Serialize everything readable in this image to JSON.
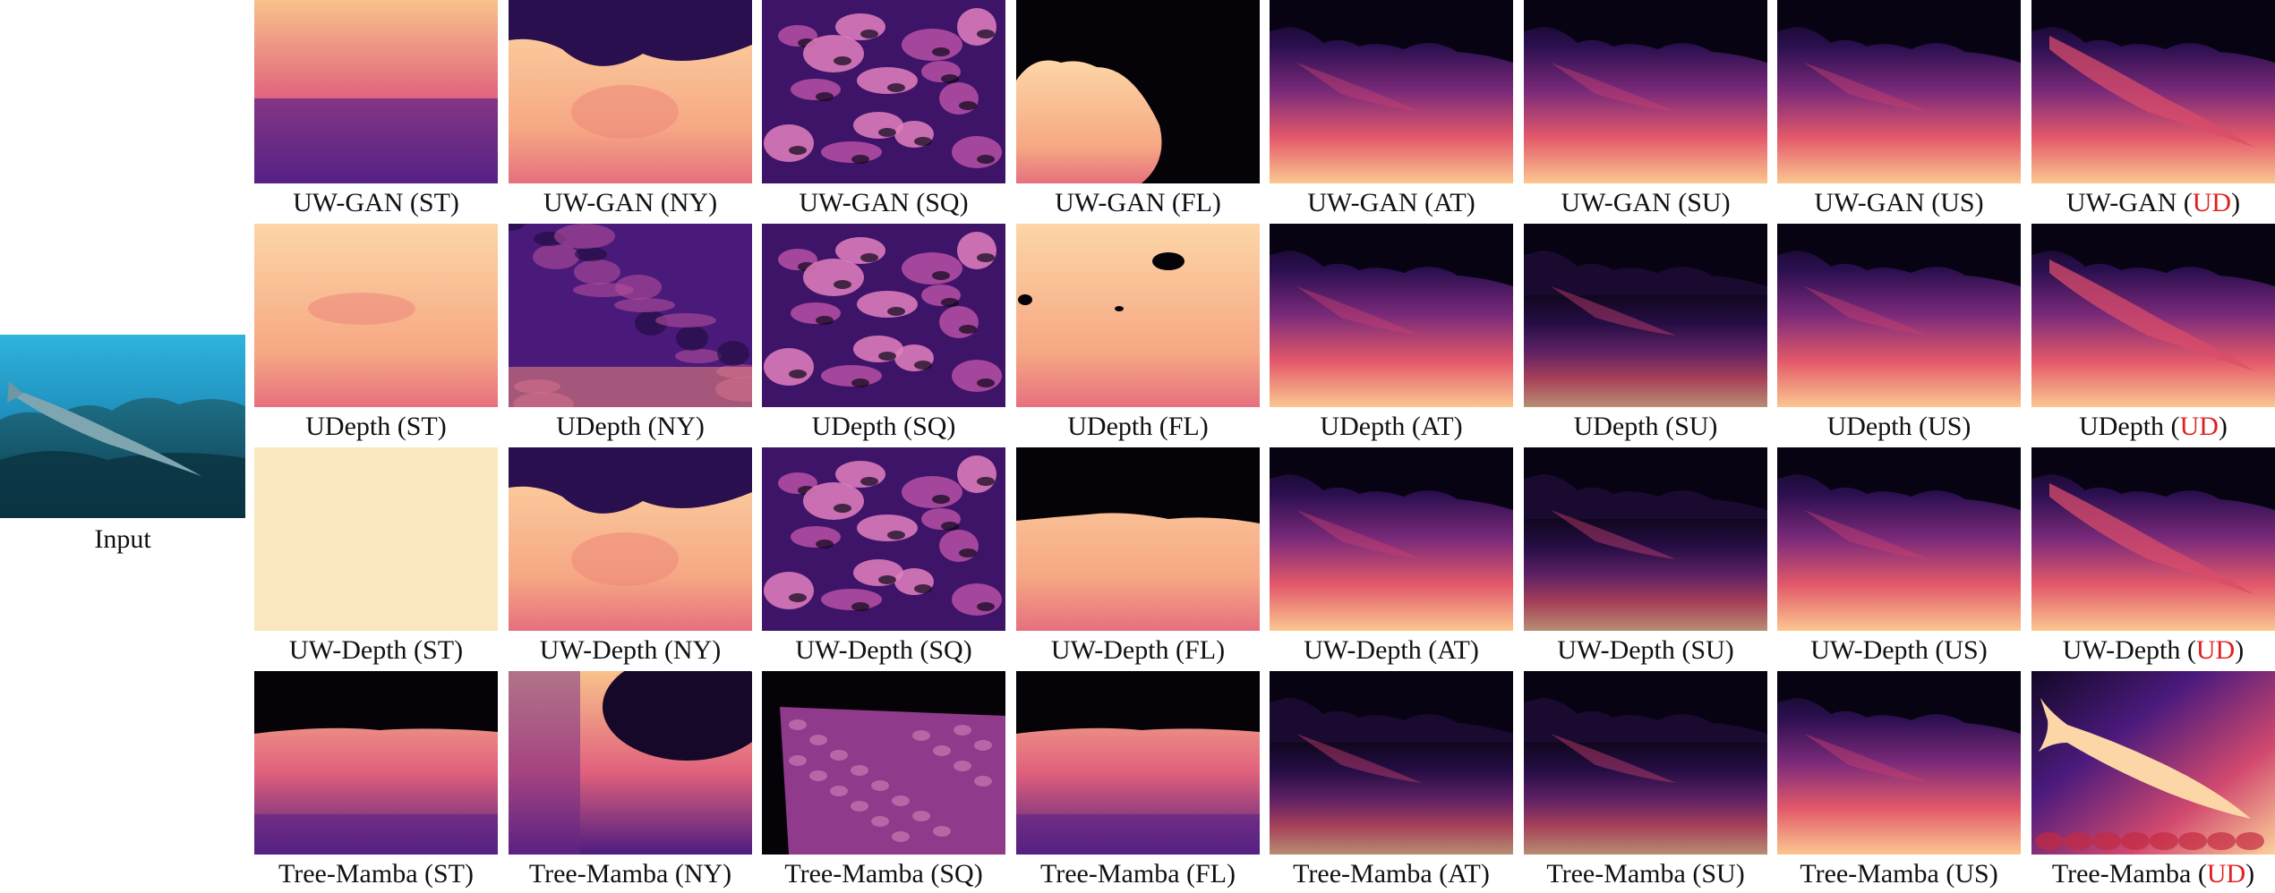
{
  "input": {
    "label": "Input"
  },
  "rows": [
    {
      "method": "UW-GAN",
      "cells": [
        {
          "label": "UW-GAN (ST)",
          "prefix": "UW-GAN (",
          "code": "ST",
          "suffix": ")",
          "style": "grad-top",
          "highlight": false
        },
        {
          "label": "UW-GAN (NY)",
          "prefix": "UW-GAN (",
          "code": "NY",
          "suffix": ")",
          "style": "bright-dark-top",
          "highlight": false
        },
        {
          "label": "UW-GAN (SQ)",
          "prefix": "UW-GAN (",
          "code": "SQ",
          "suffix": ")",
          "style": "blobs",
          "highlight": false
        },
        {
          "label": "UW-GAN (FL)",
          "prefix": "UW-GAN (",
          "code": "FL",
          "suffix": ")",
          "style": "mound",
          "highlight": false
        },
        {
          "label": "UW-GAN (AT)",
          "prefix": "UW-GAN (",
          "code": "AT",
          "suffix": ")",
          "style": "scene",
          "highlight": false
        },
        {
          "label": "UW-GAN (SU)",
          "prefix": "UW-GAN (",
          "code": "SU",
          "suffix": ")",
          "style": "scene",
          "highlight": false
        },
        {
          "label": "UW-GAN (US)",
          "prefix": "UW-GAN (",
          "code": "US",
          "suffix": ")",
          "style": "scene",
          "highlight": false
        },
        {
          "label": "UW-GAN (UD)",
          "prefix": "UW-GAN (",
          "code": "UD",
          "suffix": ")",
          "style": "scene-fish",
          "highlight": true
        }
      ]
    },
    {
      "method": "UDepth",
      "cells": [
        {
          "label": "UDepth (ST)",
          "prefix": "UDepth (",
          "code": "ST",
          "suffix": ")",
          "style": "light",
          "highlight": false
        },
        {
          "label": "UDepth (NY)",
          "prefix": "UDepth (",
          "code": "NY",
          "suffix": ")",
          "style": "purple-noise",
          "highlight": false
        },
        {
          "label": "UDepth (SQ)",
          "prefix": "UDepth (",
          "code": "SQ",
          "suffix": ")",
          "style": "blobs",
          "highlight": false
        },
        {
          "label": "UDepth (FL)",
          "prefix": "UDepth (",
          "code": "FL",
          "suffix": ")",
          "style": "bright-holes",
          "highlight": false
        },
        {
          "label": "UDepth (AT)",
          "prefix": "UDepth (",
          "code": "AT",
          "suffix": ")",
          "style": "scene",
          "highlight": false
        },
        {
          "label": "UDepth (SU)",
          "prefix": "UDepth (",
          "code": "SU",
          "suffix": ")",
          "style": "scene-dark",
          "highlight": false
        },
        {
          "label": "UDepth (US)",
          "prefix": "UDepth (",
          "code": "US",
          "suffix": ")",
          "style": "scene",
          "highlight": false
        },
        {
          "label": "UDepth (UD)",
          "prefix": "UDepth (",
          "code": "UD",
          "suffix": ")",
          "style": "scene-fish",
          "highlight": true
        }
      ]
    },
    {
      "method": "UW-Depth",
      "cells": [
        {
          "label": "UW-Depth (ST)",
          "prefix": "UW-Depth (",
          "code": "ST",
          "suffix": ")",
          "style": "cream",
          "highlight": false
        },
        {
          "label": "UW-Depth (NY)",
          "prefix": "UW-Depth (",
          "code": "NY",
          "suffix": ")",
          "style": "bright-dark-top",
          "highlight": false
        },
        {
          "label": "UW-Depth (SQ)",
          "prefix": "UW-Depth (",
          "code": "SQ",
          "suffix": ")",
          "style": "blobs",
          "highlight": false
        },
        {
          "label": "UW-Depth (FL)",
          "prefix": "UW-Depth (",
          "code": "FL",
          "suffix": ")",
          "style": "dark-top-bright",
          "highlight": false
        },
        {
          "label": "UW-Depth (AT)",
          "prefix": "UW-Depth (",
          "code": "AT",
          "suffix": ")",
          "style": "scene",
          "highlight": false
        },
        {
          "label": "UW-Depth (SU)",
          "prefix": "UW-Depth (",
          "code": "SU",
          "suffix": ")",
          "style": "scene-dark",
          "highlight": false
        },
        {
          "label": "UW-Depth (US)",
          "prefix": "UW-Depth (",
          "code": "US",
          "suffix": ")",
          "style": "scene",
          "highlight": false
        },
        {
          "label": "UW-Depth (UD)",
          "prefix": "UW-Depth (",
          "code": "UD",
          "suffix": ")",
          "style": "scene-fish",
          "highlight": true
        }
      ]
    },
    {
      "method": "Tree-Mamba",
      "cells": [
        {
          "label": "Tree-Mamba (ST)",
          "prefix": "Tree-Mamba (",
          "code": "ST",
          "suffix": ")",
          "style": "dark-top-grad",
          "highlight": false
        },
        {
          "label": "Tree-Mamba (NY)",
          "prefix": "Tree-Mamba (",
          "code": "NY",
          "suffix": ")",
          "style": "purple-dark-corner",
          "highlight": false
        },
        {
          "label": "Tree-Mamba (SQ)",
          "prefix": "Tree-Mamba (",
          "code": "SQ",
          "suffix": ")",
          "style": "slab",
          "highlight": false
        },
        {
          "label": "Tree-Mamba (FL)",
          "prefix": "Tree-Mamba (",
          "code": "FL",
          "suffix": ")",
          "style": "dark-top-grad",
          "highlight": false
        },
        {
          "label": "Tree-Mamba (AT)",
          "prefix": "Tree-Mamba (",
          "code": "AT",
          "suffix": ")",
          "style": "scene-dark",
          "highlight": false
        },
        {
          "label": "Tree-Mamba (SU)",
          "prefix": "Tree-Mamba (",
          "code": "SU",
          "suffix": ")",
          "style": "scene-dark",
          "highlight": false
        },
        {
          "label": "Tree-Mamba (US)",
          "prefix": "Tree-Mamba (",
          "code": "US",
          "suffix": ")",
          "style": "scene",
          "highlight": false
        },
        {
          "label": "Tree-Mamba (UD)",
          "prefix": "Tree-Mamba (",
          "code": "UD",
          "suffix": ")",
          "style": "fish-gt",
          "highlight": true
        }
      ]
    }
  ]
}
